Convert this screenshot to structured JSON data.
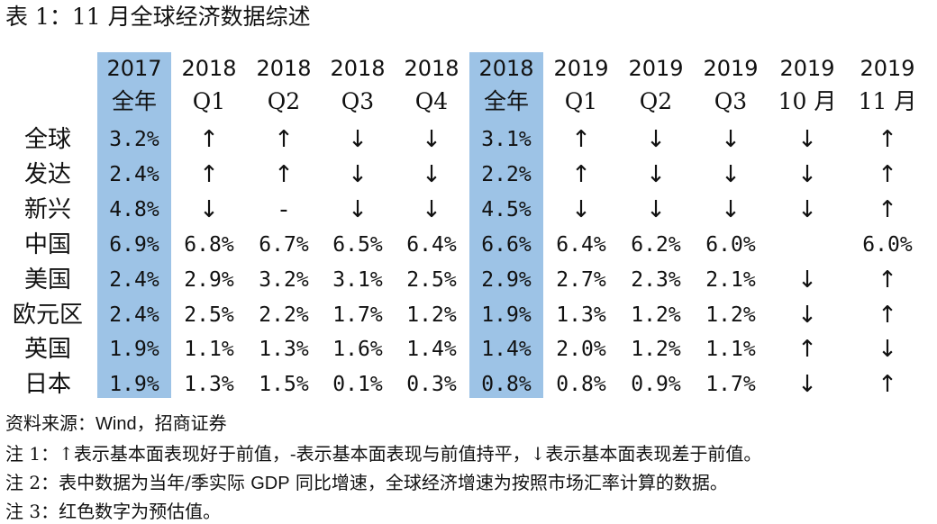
{
  "title": "表 1：11 月全球经济数据综述",
  "columns": [
    {
      "year": "2017",
      "sub": "全年"
    },
    {
      "year": "2018",
      "sub": "Q1"
    },
    {
      "year": "2018",
      "sub": "Q2"
    },
    {
      "year": "2018",
      "sub": "Q3"
    },
    {
      "year": "2018",
      "sub": "Q4"
    },
    {
      "year": "2018",
      "sub": "全年"
    },
    {
      "year": "2019",
      "sub": "Q1"
    },
    {
      "year": "2019",
      "sub": "Q2"
    },
    {
      "year": "2019",
      "sub": "Q3"
    },
    {
      "year": "2019",
      "sub": "10 月"
    },
    {
      "year": "2019",
      "sub": "11 月"
    }
  ],
  "rows": [
    {
      "label": "全球",
      "cells": [
        "3.2%",
        "↑",
        "↑",
        "↓",
        "↓",
        "3.1%",
        "↑",
        "↓",
        "↓",
        "↓",
        "↑"
      ]
    },
    {
      "label": "发达",
      "cells": [
        "2.4%",
        "↑",
        "↑",
        "↓",
        "↓",
        "2.2%",
        "↑",
        "↓",
        "↓",
        "↓",
        "↑"
      ]
    },
    {
      "label": "新兴",
      "cells": [
        "4.8%",
        "↓",
        "-",
        "↓",
        "↓",
        "4.5%",
        "↓",
        "↓",
        "↓",
        "↓",
        "↑"
      ]
    },
    {
      "label": "中国",
      "cells": [
        "6.9%",
        "6.8%",
        "6.7%",
        "6.5%",
        "6.4%",
        "6.6%",
        "6.4%",
        "6.2%",
        "6.0%",
        "",
        "6.0%"
      ]
    },
    {
      "label": "美国",
      "cells": [
        "2.4%",
        "2.9%",
        "3.2%",
        "3.1%",
        "2.5%",
        "2.9%",
        "2.7%",
        "2.3%",
        "2.1%",
        "↓",
        "↑"
      ]
    },
    {
      "label": "欧元区",
      "cells": [
        "2.4%",
        "2.5%",
        "2.2%",
        "1.7%",
        "1.2%",
        "1.9%",
        "1.3%",
        "1.2%",
        "1.2%",
        "↓",
        "↑"
      ]
    },
    {
      "label": "英国",
      "cells": [
        "1.9%",
        "1.1%",
        "1.3%",
        "1.6%",
        "1.4%",
        "1.4%",
        "2.0%",
        "1.2%",
        "1.1%",
        "↑",
        "↓"
      ]
    },
    {
      "label": "日本",
      "cells": [
        "1.9%",
        "1.3%",
        "1.5%",
        "0.1%",
        "0.3%",
        "0.8%",
        "0.8%",
        "0.9%",
        "1.7%",
        "↓",
        "↑"
      ]
    }
  ],
  "footnotes": {
    "source_prefix": "资料来源：",
    "source_latin": "Wind",
    "source_suffix": "，招商证券",
    "note1": "注 1：↑表示基本面表现好于前值，-表示基本面表现与前值持平，↓表示基本面表现差于前值。",
    "note2_prefix": "注 2：表中数据为当年/季实际 ",
    "note2_latin": "GDP",
    "note2_suffix": " 同比增速，全球经济增速为按照市场汇率计算的数据。",
    "note3": "注 3：红色数字为预估值。"
  },
  "colors": {
    "highlight": "#9dc3e6",
    "text": "#111111"
  }
}
